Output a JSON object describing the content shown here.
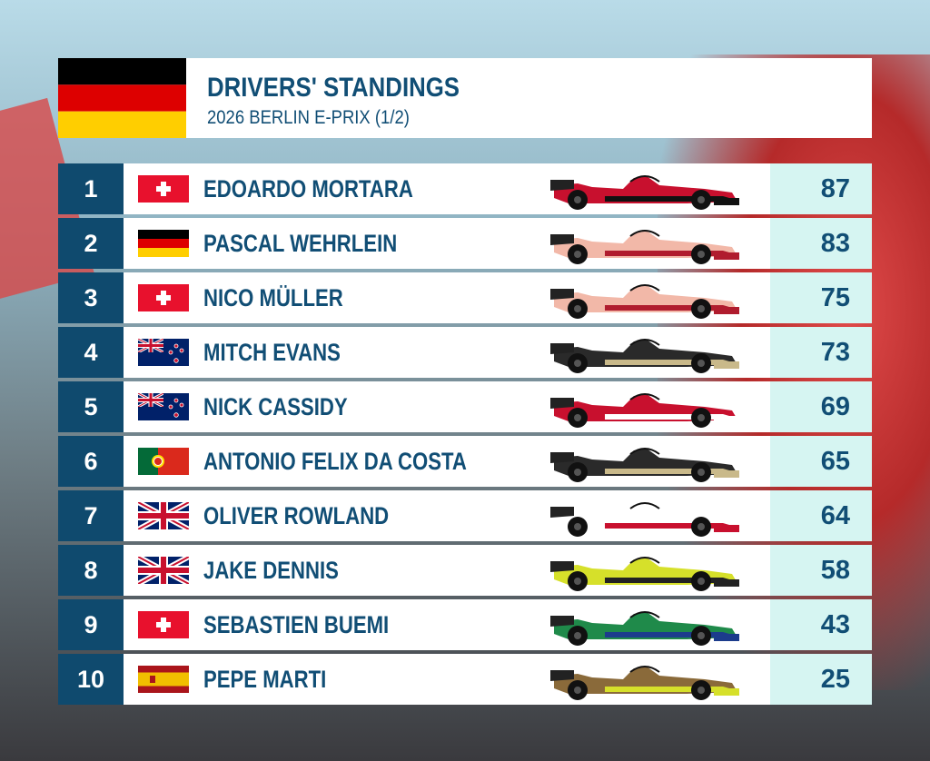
{
  "header": {
    "title": "DRIVERS' STANDINGS",
    "subtitle": "2026 BERLIN E-PRIX (1/2)"
  },
  "table": {
    "rows": [
      [
        "1",
        "EDOARDO MORTARA",
        "87"
      ],
      [
        "2",
        "PASCAL WEHRLEIN",
        "83"
      ],
      [
        "3",
        "NICO MÜLLER",
        "75"
      ],
      [
        "4",
        "MITCH EVANS",
        "73"
      ],
      [
        "5",
        "NICK CASSIDY",
        "69"
      ],
      [
        "6",
        "ANTONIO FELIX DA COSTA",
        "65"
      ],
      [
        "7",
        "OLIVER ROWLAND",
        "64"
      ],
      [
        "8",
        "JAKE DENNIS",
        "58"
      ],
      [
        "9",
        "SEBASTIEN BUEMI",
        "43"
      ],
      [
        "10",
        "PEPE MARTI",
        "25"
      ]
    ]
  }
}
